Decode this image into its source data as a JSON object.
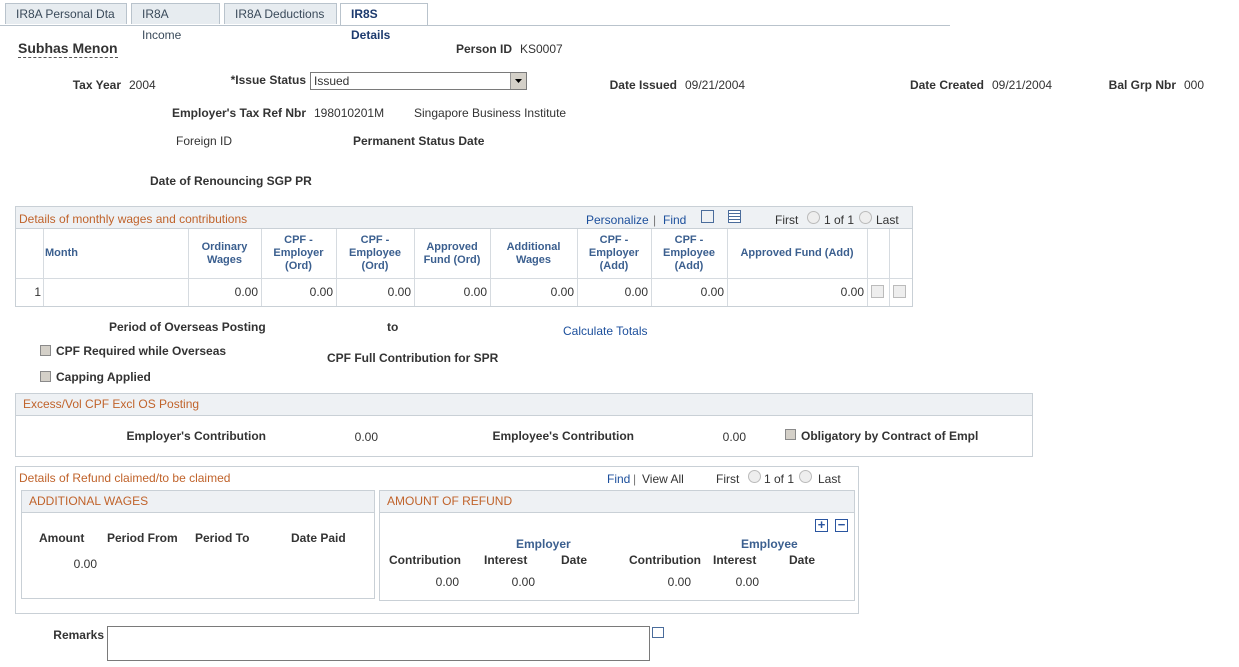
{
  "tabs": [
    "IR8A Personal Dta",
    "IR8A Income",
    "IR8A Deductions",
    "IR8S Details"
  ],
  "header": {
    "name": "Subhas Menon",
    "person_id_label": "Person ID",
    "person_id": "KS0007",
    "tax_year_label": "Tax Year",
    "tax_year": "2004",
    "issue_status_label": "*Issue Status",
    "issue_status": "Issued",
    "date_issued_label": "Date Issued",
    "date_issued": "09/21/2004",
    "date_created_label": "Date Created",
    "date_created": "09/21/2004",
    "bal_grp_label": "Bal Grp Nbr",
    "bal_grp": "000",
    "employer_tax_ref_label": "Employer's Tax Ref Nbr",
    "employer_tax_ref": "198010201M",
    "employer_name": "Singapore Business Institute",
    "foreign_id_label": "Foreign ID",
    "permanent_status_date_label": "Permanent Status Date",
    "renouncing_label": "Date of Renouncing SGP PR"
  },
  "monthly_grid": {
    "title": "Details of monthly wages and contributions",
    "personalize": "Personalize",
    "find": "Find",
    "first": "First",
    "count": "1 of 1",
    "last": "Last",
    "columns": [
      "Month",
      "Ordinary Wages",
      "CPF - Employer (Ord)",
      "CPF - Employee (Ord)",
      "Approved Fund (Ord)",
      "Additional Wages",
      "CPF - Employer (Add)",
      "CPF - Employee (Add)",
      "Approved Fund (Add)"
    ],
    "rows": [
      {
        "number": "1",
        "values": [
          "0.00",
          "0.00",
          "0.00",
          "0.00",
          "0.00",
          "0.00",
          "0.00",
          "0.00"
        ]
      }
    ]
  },
  "overseas": {
    "period_label": "Period of Overseas Posting",
    "to_label": "to",
    "calculate_totals": "Calculate Totals",
    "cpf_required": "CPF Required while Overseas",
    "cpf_full": "CPF Full Contribution for SPR",
    "capping": "Capping Applied"
  },
  "excess": {
    "title": "Excess/Vol CPF Excl OS Posting",
    "employer_label": "Employer's Contribution",
    "employer_value": "0.00",
    "employee_label": "Employee's Contribution",
    "employee_value": "0.00",
    "obligatory": "Obligatory by Contract of Empl"
  },
  "refund": {
    "title": "Details of Refund claimed/to be claimed",
    "find": "Find",
    "view_all": "View All",
    "first": "First",
    "count": "1 of 1",
    "last": "Last",
    "additional_wages": {
      "title": "ADDITIONAL WAGES",
      "columns": [
        "Amount",
        "Period From",
        "Period To",
        "Date Paid"
      ],
      "amount": "0.00"
    },
    "amount_of_refund": {
      "title": "AMOUNT OF REFUND",
      "employer": "Employer",
      "employee": "Employee",
      "columns": [
        "Contribution",
        "Interest",
        "Date",
        "Contribution",
        "Interest",
        "Date"
      ],
      "values": [
        "0.00",
        "0.00",
        "0.00",
        "0.00"
      ]
    }
  },
  "remarks_label": "Remarks"
}
